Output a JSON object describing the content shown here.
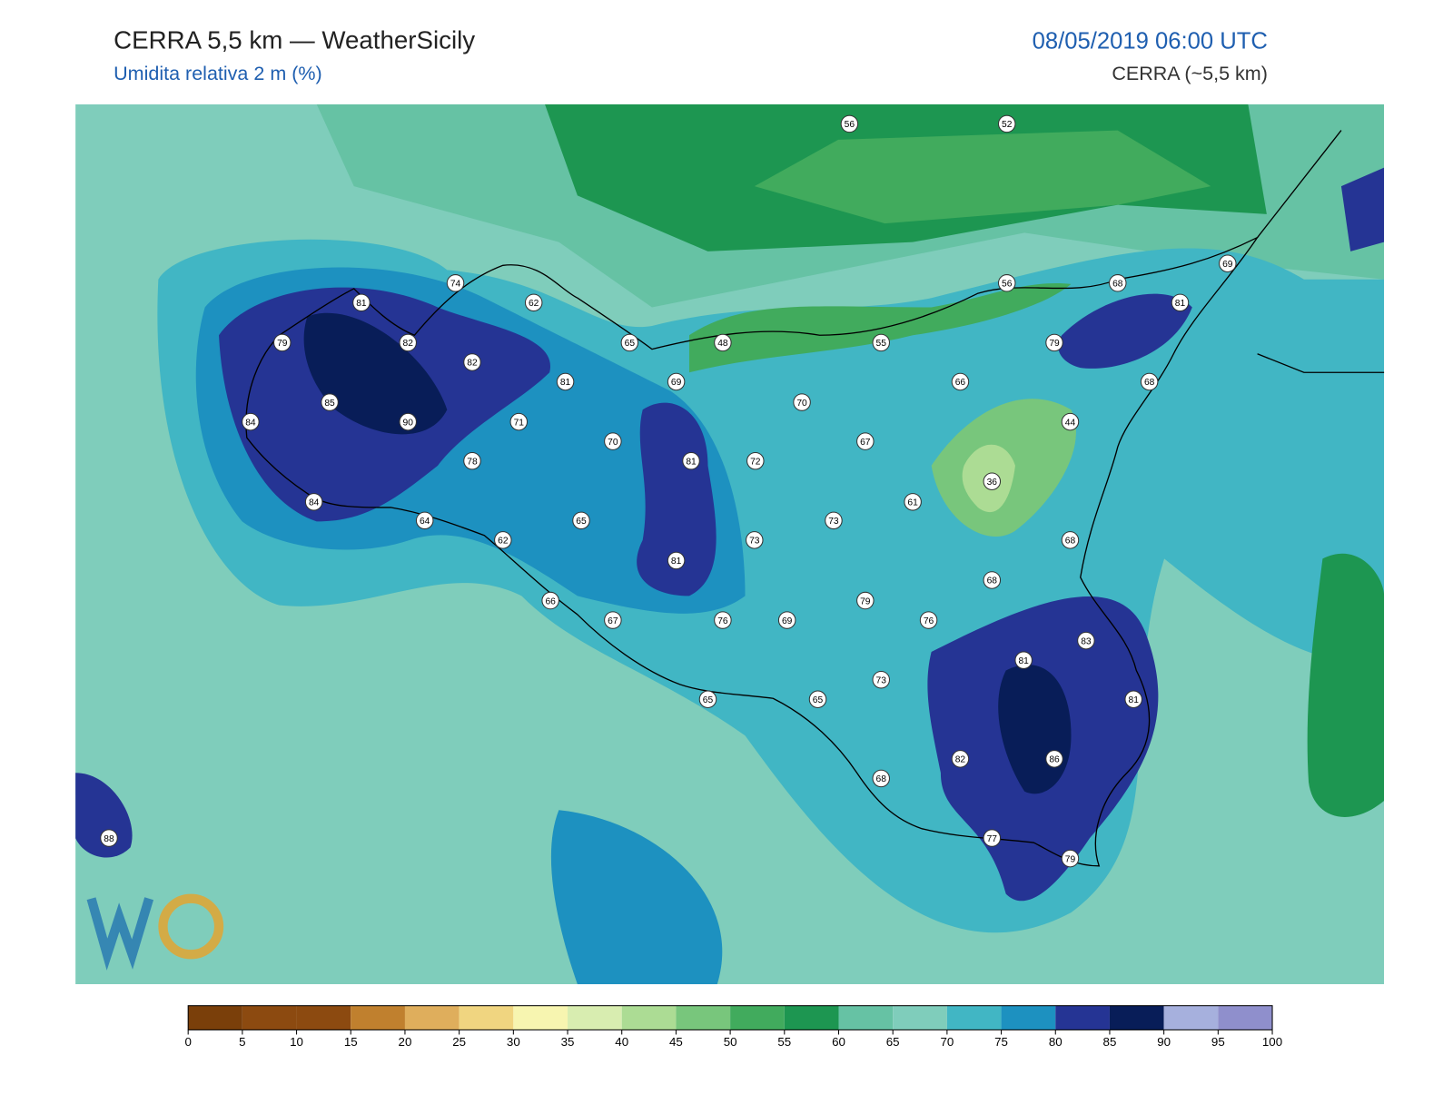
{
  "header": {
    "title": "CERRA 5,5 km — WeatherSicily",
    "subtitle": "Umidita relativa 2 m (%)",
    "datetime": "08/05/2019 06:00 UTC",
    "model": "CERRA (~5,5 km)"
  },
  "stations": [
    56,
    52,
    74,
    62,
    81,
    79,
    82,
    82,
    85,
    90,
    84,
    71,
    65,
    48,
    81,
    69,
    70,
    70,
    78,
    81,
    72,
    84,
    64,
    62,
    65,
    73,
    73,
    67,
    61,
    66,
    55,
    56,
    68,
    69,
    81,
    79,
    68,
    44,
    36,
    68,
    68,
    81,
    66,
    67,
    76,
    69,
    79,
    76,
    83,
    81,
    73,
    65,
    65,
    81,
    82,
    86,
    68,
    77,
    79,
    88
  ],
  "colorbar": {
    "ticks": [
      0,
      5,
      10,
      15,
      20,
      25,
      30,
      35,
      40,
      45,
      50,
      55,
      60,
      65,
      70,
      75,
      80,
      85,
      90,
      95,
      100
    ],
    "colors": [
      "#7a3f0a",
      "#8c4a10",
      "#8c4a10",
      "#c0802e",
      "#dfae5c",
      "#f0d580",
      "#f7f5b0",
      "#d8edb0",
      "#acdc94",
      "#78c67c",
      "#41ab5d",
      "#1d9651",
      "#66c2a4",
      "#7fcdbb",
      "#41b6c4",
      "#1d91c0",
      "#253494",
      "#081d58",
      "#a6b0dd",
      "#8f8fcc"
    ]
  }
}
